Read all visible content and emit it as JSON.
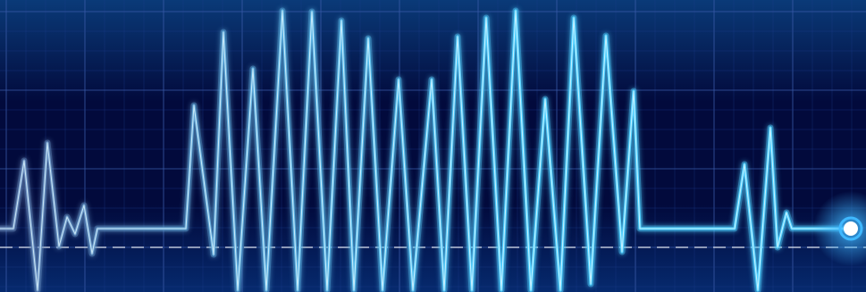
{
  "scene": {
    "subject": "ecg-waveform",
    "colors": {
      "background_top": "#0a3a78",
      "background_mid": "#020a3c",
      "background_bottom": "#062a6e",
      "grid_minor": "#1e3c8c",
      "grid_major": "#3a5aa8",
      "trace_start": "#6e8fc0",
      "trace_end": "#4fd0ff",
      "trace_core": "#dff6ff",
      "baseline_dash": "#ffffff",
      "endpoint_glow": "#3fb8ff",
      "endpoint_core": "#ffffff"
    }
  }
}
